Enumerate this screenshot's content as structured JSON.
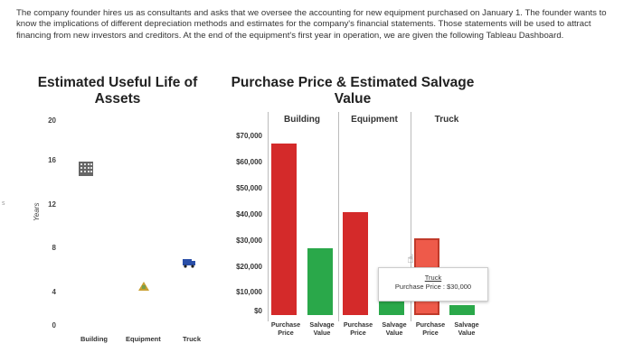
{
  "intro_text": "The company founder hires us as consultants and asks that we oversee the accounting for new equipment purchased on January 1. The founder wants to know the implications of different depreciation methods and estimates for the company's financial statements. Those statements will be used to attract financing from new investors and creditors. At the end of the equipment's first year in operation, we are given the following Tableau Dashboard.",
  "left_chart": {
    "title_line1": "Estimated Useful Life of",
    "title_line2": "Assets",
    "y_title": "Years",
    "y_ticks": [
      "20",
      "16",
      "12",
      "8",
      "4",
      "0"
    ],
    "categories": [
      "Building",
      "Equipment",
      "Truck"
    ],
    "icons": [
      "building-icon",
      "tools-icon",
      "truck-icon"
    ]
  },
  "right_chart": {
    "title_line1": "Purchase Price & Estimated Salvage",
    "title_line2": "Value",
    "columns": [
      "Building",
      "Equipment",
      "Truck"
    ],
    "money_ticks": [
      "$70,000",
      "$60,000",
      "$50,000",
      "$40,000",
      "$30,000",
      "$20,000",
      "$10,000",
      "$0"
    ],
    "sub_labels": [
      {
        "l1": "Purchase",
        "l2": "Price"
      },
      {
        "l1": "Salvage",
        "l2": "Value"
      },
      {
        "l1": "Purchase",
        "l2": "Price"
      },
      {
        "l1": "Salvage",
        "l2": "Value"
      },
      {
        "l1": "Purchase",
        "l2": "Price"
      },
      {
        "l1": "Salvage",
        "l2": "Value"
      }
    ],
    "colors": {
      "purchase": "#d42a2a",
      "salvage": "#2aa84a",
      "truck_purchase": "#ee5a4a"
    }
  },
  "chart_data": {
    "type": "bar",
    "categories": [
      "Building Purchase Price",
      "Building Salvage Value",
      "Equipment Purchase Price",
      "Equipment Salvage Value",
      "Truck Purchase Price",
      "Truck Salvage Value"
    ],
    "values": [
      67000,
      26000,
      40000,
      8500,
      30000,
      4000
    ],
    "ylim": [
      0,
      70000
    ]
  },
  "tooltip": {
    "title": "Truck",
    "line": "Purchase Price : $30,000"
  },
  "edge_mark": "s"
}
